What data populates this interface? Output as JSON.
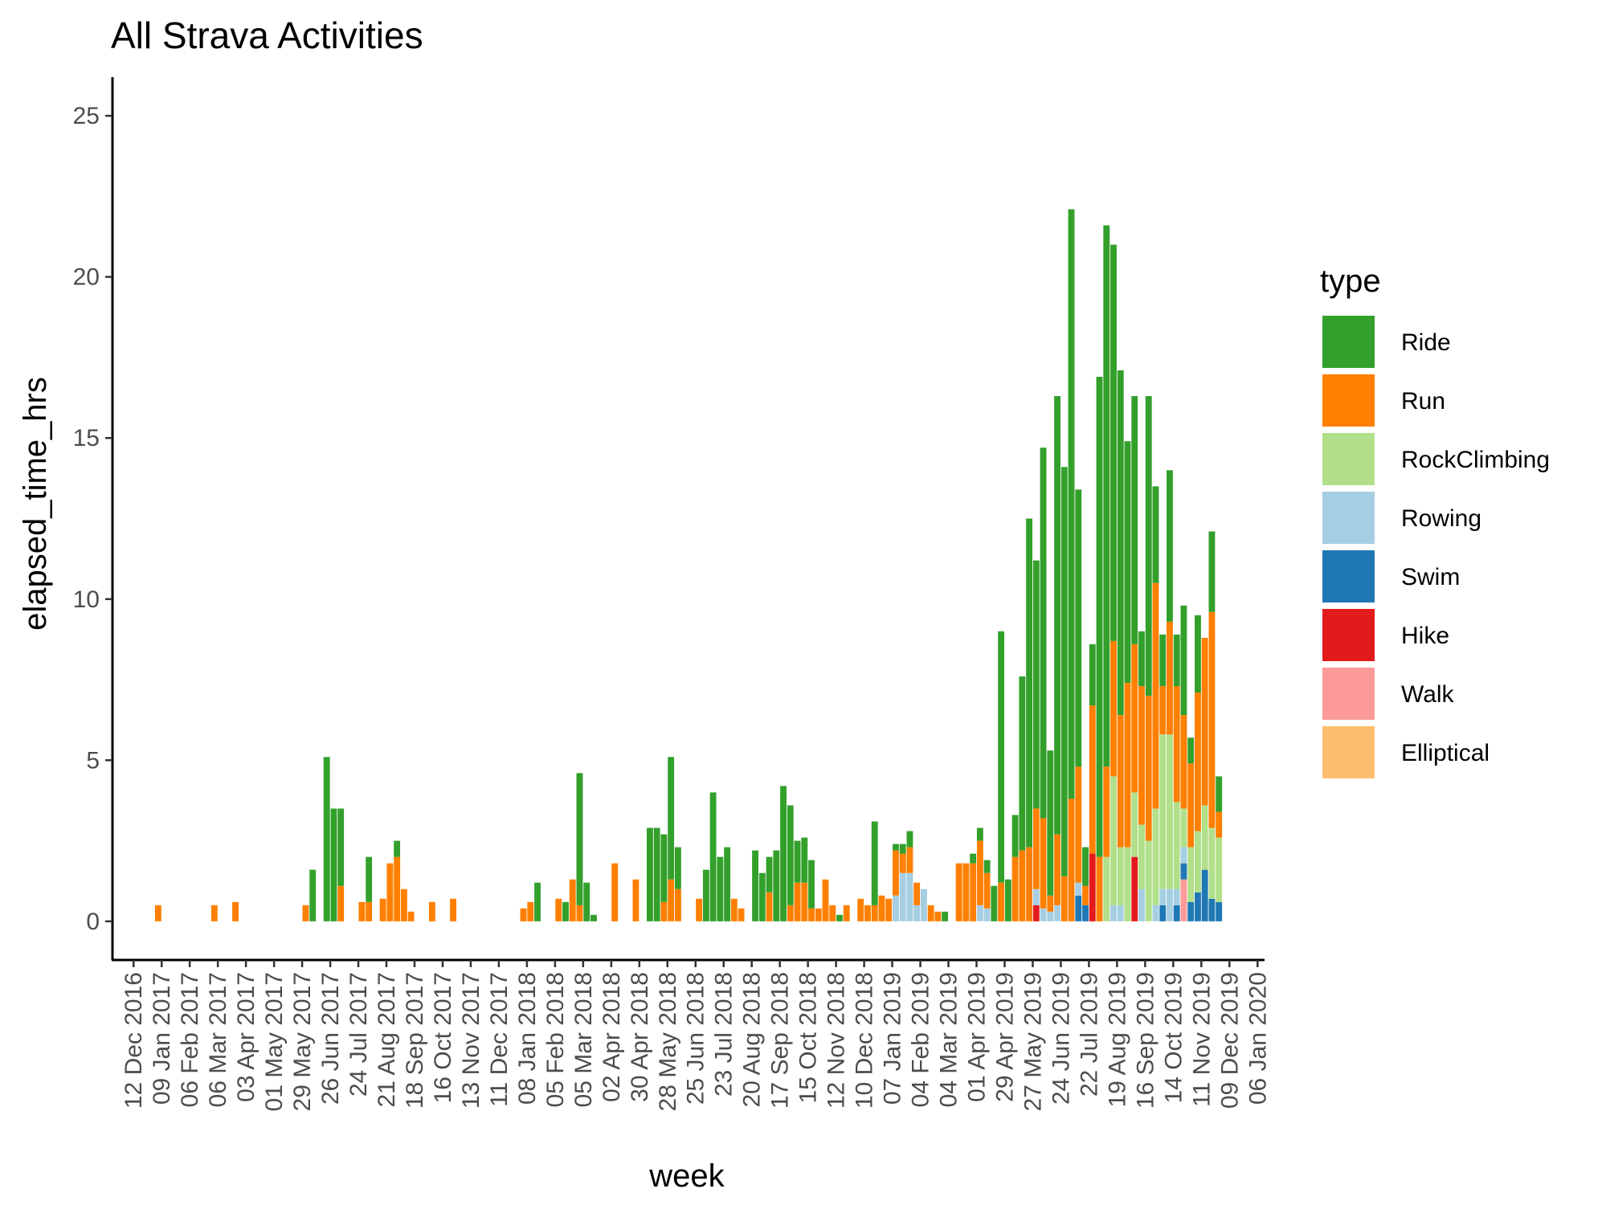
{
  "chart_data": {
    "type": "bar",
    "stacked": true,
    "title": "All Strava Activities",
    "xlabel": "week",
    "ylabel": "elapsed_time_hrs",
    "ylim": [
      -1.2,
      26.2
    ],
    "xlim": [
      "2016-11-21",
      "2020-01-13"
    ],
    "y_ticks": [
      0,
      5,
      10,
      15,
      20,
      25
    ],
    "x_ticks": [
      "2016-12-12",
      "2017-01-09",
      "2017-02-06",
      "2017-03-06",
      "2017-04-03",
      "2017-05-01",
      "2017-05-29",
      "2017-06-26",
      "2017-07-24",
      "2017-08-21",
      "2017-09-18",
      "2017-10-16",
      "2017-11-13",
      "2017-12-11",
      "2018-01-08",
      "2018-02-05",
      "2018-03-05",
      "2018-04-02",
      "2018-04-30",
      "2018-05-28",
      "2018-06-25",
      "2018-07-23",
      "2018-08-20",
      "2018-09-17",
      "2018-10-15",
      "2018-11-12",
      "2018-12-10",
      "2019-01-07",
      "2019-02-04",
      "2019-03-04",
      "2019-04-01",
      "2019-04-29",
      "2019-05-27",
      "2019-06-24",
      "2019-07-22",
      "2019-08-19",
      "2019-09-16",
      "2019-10-14",
      "2019-11-11",
      "2019-12-09",
      "2020-01-06"
    ],
    "x_tick_labels": [
      "12 Dec 2016",
      "09 Jan 2017",
      "06 Feb 2017",
      "06 Mar 2017",
      "03 Apr 2017",
      "01 May 2017",
      "29 May 2017",
      "26 Jun 2017",
      "24 Jul 2017",
      "21 Aug 2017",
      "18 Sep 2017",
      "16 Oct 2017",
      "13 Nov 2017",
      "11 Dec 2017",
      "08 Jan 2018",
      "05 Feb 2018",
      "05 Mar 2018",
      "02 Apr 2018",
      "30 Apr 2018",
      "28 May 2018",
      "25 Jun 2018",
      "23 Jul 2018",
      "20 Aug 2018",
      "17 Sep 2018",
      "15 Oct 2018",
      "12 Nov 2018",
      "10 Dec 2018",
      "07 Jan 2019",
      "04 Feb 2019",
      "04 Mar 2019",
      "01 Apr 2019",
      "29 Apr 2019",
      "27 May 2019",
      "24 Jun 2019",
      "22 Jul 2019",
      "19 Aug 2019",
      "16 Sep 2019",
      "14 Oct 2019",
      "11 Nov 2019",
      "09 Dec 2019",
      "06 Jan 2020"
    ],
    "grid": false,
    "legend": {
      "title": "type",
      "position": "right",
      "entries": [
        {
          "name": "Ride",
          "color": "#33a02c"
        },
        {
          "name": "Run",
          "color": "#ff7f00"
        },
        {
          "name": "RockClimbing",
          "color": "#b2df8a"
        },
        {
          "name": "Rowing",
          "color": "#a6cee3"
        },
        {
          "name": "Swim",
          "color": "#1f78b4"
        },
        {
          "name": "Hike",
          "color": "#e31a1c"
        },
        {
          "name": "Walk",
          "color": "#fb9a99"
        },
        {
          "name": "Elliptical",
          "color": "#fdbf6f"
        }
      ]
    },
    "stack_order": [
      "Elliptical",
      "Walk",
      "Hike",
      "Swim",
      "Rowing",
      "RockClimbing",
      "Run",
      "Ride"
    ],
    "bars": [
      {
        "week": "2017-01-02",
        "Run": 0.5
      },
      {
        "week": "2017-02-27",
        "Run": 0.5
      },
      {
        "week": "2017-03-20",
        "Run": 0.6
      },
      {
        "week": "2017-05-29",
        "Run": 0.5
      },
      {
        "week": "2017-06-05",
        "Ride": 1.6
      },
      {
        "week": "2017-06-19",
        "Ride": 5.1
      },
      {
        "week": "2017-06-26",
        "Ride": 3.5
      },
      {
        "week": "2017-07-03",
        "Run": 1.1,
        "Ride": 2.4
      },
      {
        "week": "2017-07-24",
        "Run": 0.6
      },
      {
        "week": "2017-07-31",
        "Run": 0.6,
        "Ride": 1.4
      },
      {
        "week": "2017-08-14",
        "Run": 0.7
      },
      {
        "week": "2017-08-21",
        "Run": 1.8
      },
      {
        "week": "2017-08-28",
        "Run": 2.0,
        "Ride": 0.5
      },
      {
        "week": "2017-09-04",
        "Run": 1.0
      },
      {
        "week": "2017-09-11",
        "Run": 0.3
      },
      {
        "week": "2017-10-02",
        "Run": 0.6
      },
      {
        "week": "2017-10-23",
        "Run": 0.7
      },
      {
        "week": "2018-01-01",
        "Run": 0.4
      },
      {
        "week": "2018-01-08",
        "Run": 0.6
      },
      {
        "week": "2018-01-15",
        "Ride": 1.2
      },
      {
        "week": "2018-02-05",
        "Run": 0.7
      },
      {
        "week": "2018-02-12",
        "Ride": 0.6
      },
      {
        "week": "2018-02-19",
        "Run": 1.3
      },
      {
        "week": "2018-02-26",
        "Run": 0.5,
        "Ride": 4.1
      },
      {
        "week": "2018-03-05",
        "Ride": 1.2
      },
      {
        "week": "2018-03-12",
        "Ride": 0.2
      },
      {
        "week": "2018-04-02",
        "Run": 1.8
      },
      {
        "week": "2018-04-23",
        "Run": 1.3
      },
      {
        "week": "2018-05-07",
        "Ride": 2.9
      },
      {
        "week": "2018-05-14",
        "Ride": 2.9
      },
      {
        "week": "2018-05-21",
        "Run": 0.6,
        "Ride": 2.1
      },
      {
        "week": "2018-05-28",
        "Run": 1.3,
        "Ride": 3.8
      },
      {
        "week": "2018-06-04",
        "Run": 1.0,
        "Ride": 1.3
      },
      {
        "week": "2018-06-25",
        "Run": 0.7
      },
      {
        "week": "2018-07-02",
        "Ride": 1.6
      },
      {
        "week": "2018-07-09",
        "Ride": 4.0
      },
      {
        "week": "2018-07-16",
        "Ride": 2.0
      },
      {
        "week": "2018-07-23",
        "Ride": 2.3
      },
      {
        "week": "2018-07-30",
        "Run": 0.7
      },
      {
        "week": "2018-08-06",
        "Run": 0.4
      },
      {
        "week": "2018-08-20",
        "Ride": 2.2
      },
      {
        "week": "2018-08-27",
        "Ride": 1.5
      },
      {
        "week": "2018-09-03",
        "Run": 0.9,
        "Ride": 1.1
      },
      {
        "week": "2018-09-10",
        "Ride": 2.2
      },
      {
        "week": "2018-09-17",
        "Ride": 4.2
      },
      {
        "week": "2018-09-24",
        "Run": 0.5,
        "Ride": 3.1
      },
      {
        "week": "2018-10-01",
        "Run": 1.2,
        "Ride": 1.3
      },
      {
        "week": "2018-10-08",
        "Run": 1.2,
        "Ride": 1.4
      },
      {
        "week": "2018-10-15",
        "Run": 0.4,
        "Ride": 1.5
      },
      {
        "week": "2018-10-22",
        "Run": 0.4
      },
      {
        "week": "2018-10-29",
        "Run": 1.3
      },
      {
        "week": "2018-11-05",
        "Run": 0.5
      },
      {
        "week": "2018-11-12",
        "Ride": 0.2
      },
      {
        "week": "2018-11-19",
        "Run": 0.5
      },
      {
        "week": "2018-12-03",
        "Run": 0.7
      },
      {
        "week": "2018-12-10",
        "Run": 0.5
      },
      {
        "week": "2018-12-17",
        "Run": 0.5,
        "Ride": 2.6
      },
      {
        "week": "2018-12-24",
        "Run": 0.8
      },
      {
        "week": "2018-12-31",
        "Run": 0.7
      },
      {
        "week": "2019-01-07",
        "Rowing": 0.8,
        "Run": 1.4,
        "Ride": 0.2
      },
      {
        "week": "2019-01-14",
        "Rowing": 1.5,
        "Run": 0.6,
        "Ride": 0.3
      },
      {
        "week": "2019-01-21",
        "Rowing": 1.5,
        "Run": 0.8,
        "Ride": 0.5
      },
      {
        "week": "2019-01-28",
        "Rowing": 0.5,
        "Run": 0.7
      },
      {
        "week": "2019-02-04",
        "Rowing": 1.0
      },
      {
        "week": "2019-02-11",
        "Run": 0.5
      },
      {
        "week": "2019-02-18",
        "Run": 0.3
      },
      {
        "week": "2019-02-25",
        "Ride": 0.3
      },
      {
        "week": "2019-03-11",
        "Run": 1.8
      },
      {
        "week": "2019-03-18",
        "Run": 1.8
      },
      {
        "week": "2019-03-25",
        "Run": 1.8,
        "Ride": 0.3
      },
      {
        "week": "2019-04-01",
        "Rowing": 0.5,
        "Run": 2.0,
        "Ride": 0.4
      },
      {
        "week": "2019-04-08",
        "Rowing": 0.4,
        "Run": 1.1,
        "Ride": 0.4
      },
      {
        "week": "2019-04-15",
        "Ride": 1.1
      },
      {
        "week": "2019-04-22",
        "Run": 1.2,
        "Ride": 7.8
      },
      {
        "week": "2019-04-29",
        "Ride": 1.3
      },
      {
        "week": "2019-05-06",
        "Run": 2.0,
        "Ride": 1.3
      },
      {
        "week": "2019-05-13",
        "Run": 2.2,
        "Ride": 5.4
      },
      {
        "week": "2019-05-20",
        "Run": 2.3,
        "Ride": 10.2
      },
      {
        "week": "2019-05-27",
        "Hike": 0.5,
        "Rowing": 0.5,
        "Run": 2.5,
        "Ride": 7.7
      },
      {
        "week": "2019-06-03",
        "Rowing": 0.4,
        "Run": 2.8,
        "Ride": 11.5
      },
      {
        "week": "2019-06-10",
        "Rowing": 0.3,
        "Run": 0.5,
        "Ride": 4.5
      },
      {
        "week": "2019-06-17",
        "Rowing": 0.5,
        "Run": 2.2,
        "Ride": 13.6
      },
      {
        "week": "2019-06-24",
        "Run": 1.4,
        "Ride": 12.7
      },
      {
        "week": "2019-07-01",
        "Run": 3.8,
        "Ride": 18.3
      },
      {
        "week": "2019-07-08",
        "Swim": 0.8,
        "Rowing": 0.4,
        "Run": 3.6,
        "Ride": 8.6
      },
      {
        "week": "2019-07-15",
        "Swim": 0.5,
        "Run": 0.6,
        "Ride": 1.2
      },
      {
        "week": "2019-07-22",
        "Hike": 2.1,
        "Run": 4.6,
        "Ride": 1.9
      },
      {
        "week": "2019-07-29",
        "Run": 2.0,
        "Ride": 14.9
      },
      {
        "week": "2019-08-05",
        "RockClimbing": 2.0,
        "Run": 2.8,
        "Ride": 16.8
      },
      {
        "week": "2019-08-12",
        "Rowing": 0.5,
        "RockClimbing": 4.0,
        "Run": 4.2,
        "Ride": 12.3
      },
      {
        "week": "2019-08-19",
        "Rowing": 0.5,
        "RockClimbing": 1.8,
        "Run": 4.1,
        "Ride": 10.7
      },
      {
        "week": "2019-08-26",
        "RockClimbing": 2.3,
        "Run": 5.1,
        "Ride": 7.5
      },
      {
        "week": "2019-09-02",
        "Hike": 2.0,
        "RockClimbing": 2.0,
        "Run": 4.6,
        "Ride": 7.7
      },
      {
        "week": "2019-09-09",
        "Rowing": 1.0,
        "RockClimbing": 2.0,
        "Run": 4.3,
        "Ride": 1.7
      },
      {
        "week": "2019-09-16",
        "RockClimbing": 2.5,
        "Run": 4.5,
        "Ride": 9.3
      },
      {
        "week": "2019-09-23",
        "Rowing": 0.5,
        "RockClimbing": 3.0,
        "Run": 7.0,
        "Ride": 3.0
      },
      {
        "week": "2019-09-30",
        "Swim": 0.5,
        "Rowing": 0.5,
        "RockClimbing": 4.8,
        "Run": 1.5,
        "Ride": 1.6
      },
      {
        "week": "2019-10-07",
        "Rowing": 1.0,
        "RockClimbing": 4.8,
        "Run": 3.5,
        "Ride": 4.7
      },
      {
        "week": "2019-10-14",
        "Swim": 0.5,
        "Rowing": 0.5,
        "RockClimbing": 2.7,
        "Run": 3.6,
        "Ride": 1.6
      },
      {
        "week": "2019-10-21",
        "Walk": 1.3,
        "Swim": 0.5,
        "Rowing": 0.5,
        "RockClimbing": 1.2,
        "Run": 2.9,
        "Ride": 3.4
      },
      {
        "week": "2019-10-28",
        "Swim": 0.6,
        "RockClimbing": 1.7,
        "Run": 2.6,
        "Ride": 0.8
      },
      {
        "week": "2019-11-04",
        "Swim": 0.9,
        "RockClimbing": 1.9,
        "Run": 4.3,
        "Ride": 2.4
      },
      {
        "week": "2019-11-11",
        "Swim": 1.6,
        "RockClimbing": 2.0,
        "Run": 5.2
      },
      {
        "week": "2019-11-18",
        "Swim": 0.7,
        "RockClimbing": 2.2,
        "Run": 6.7,
        "Ride": 2.5
      },
      {
        "week": "2019-11-25",
        "Swim": 0.6,
        "RockClimbing": 2.0,
        "Run": 0.8,
        "Ride": 1.1
      }
    ]
  }
}
